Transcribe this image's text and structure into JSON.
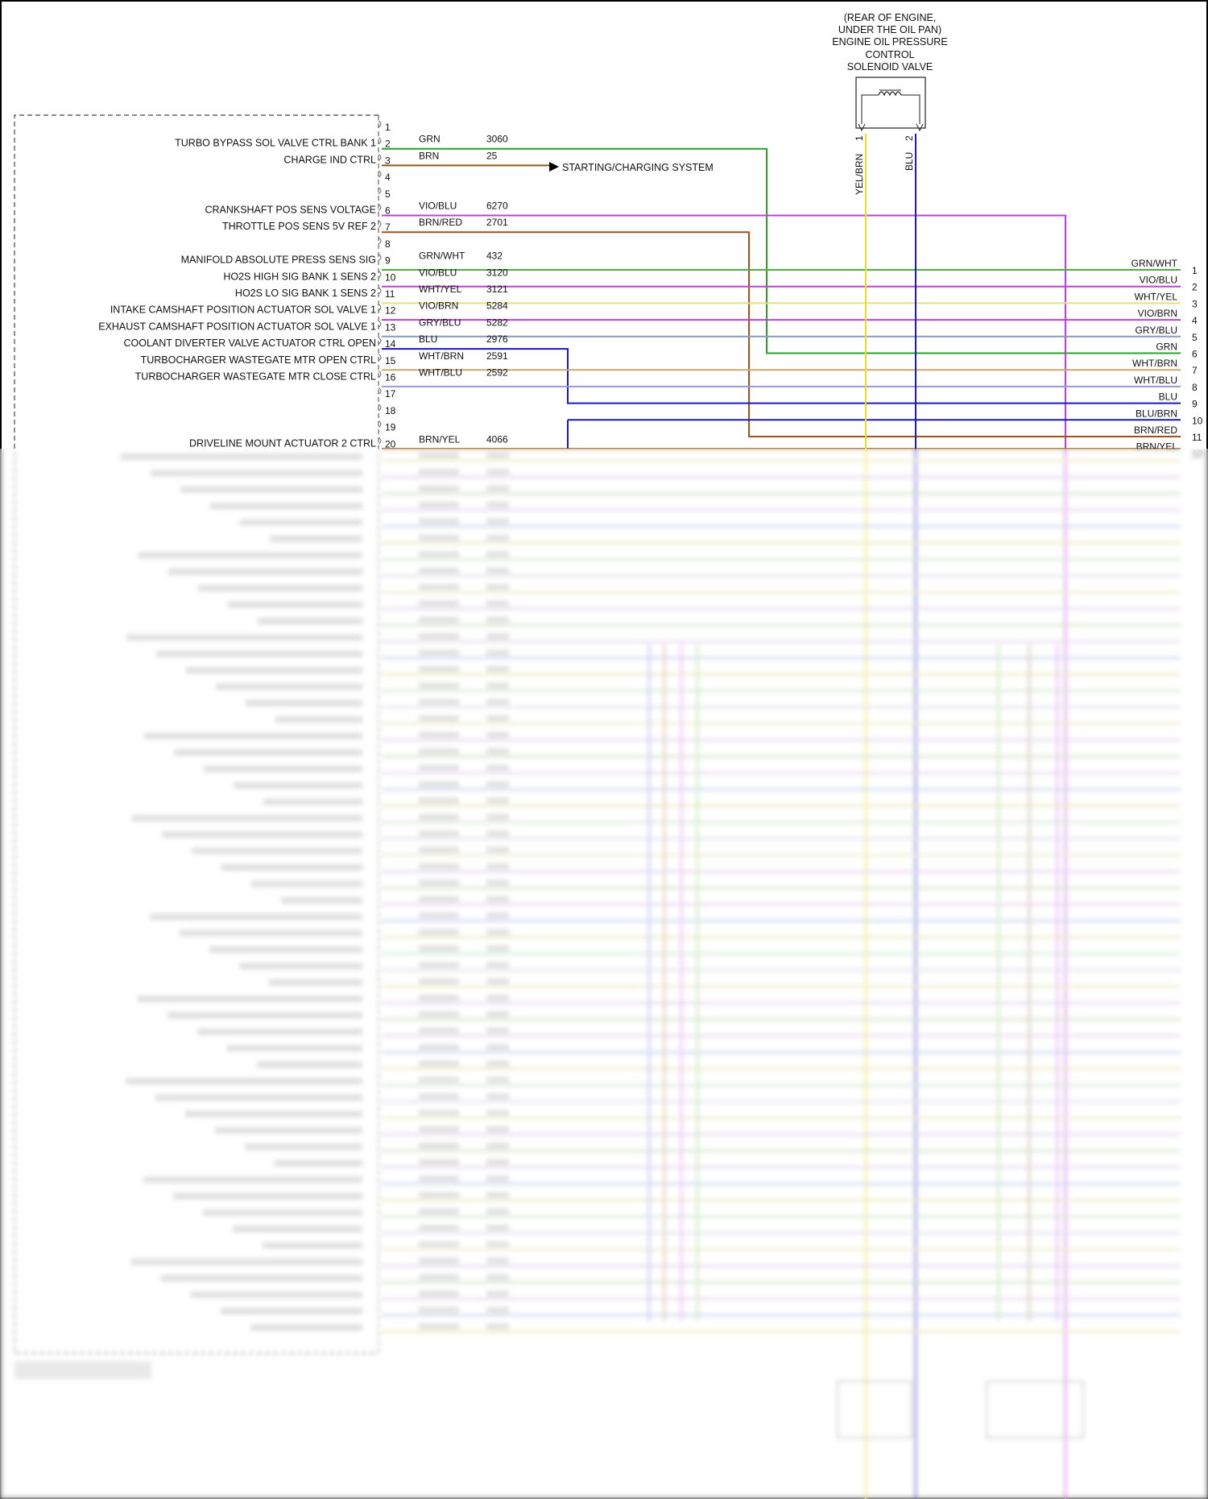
{
  "solenoid": {
    "location_lines": [
      "(REAR OF ENGINE,",
      "UNDER THE OIL PAN)"
    ],
    "name_lines": [
      "ENGINE OIL PRESSURE",
      "CONTROL",
      "SOLENOID VALVE"
    ],
    "pin1": "1",
    "pin2": "2",
    "wire1": "YEL/BRN",
    "wire2": "BLU"
  },
  "destination": "STARTING/CHARGING SYSTEM",
  "pins": [
    {
      "pin": "1",
      "label": "",
      "color": "",
      "circuit": ""
    },
    {
      "pin": "2",
      "label": "TURBO BYPASS SOL VALVE CTRL BANK 1",
      "color": "GRN",
      "circuit": "3060"
    },
    {
      "pin": "3",
      "label": "CHARGE IND CTRL",
      "color": "BRN",
      "circuit": "25"
    },
    {
      "pin": "4",
      "label": "",
      "color": "",
      "circuit": ""
    },
    {
      "pin": "5",
      "label": "",
      "color": "",
      "circuit": ""
    },
    {
      "pin": "6",
      "label": "CRANKSHAFT POS SENS VOLTAGE",
      "color": "VIO/BLU",
      "circuit": "6270"
    },
    {
      "pin": "7",
      "label": "THROTTLE POS SENS 5V REF 2",
      "color": "BRN/RED",
      "circuit": "2701"
    },
    {
      "pin": "8",
      "label": "",
      "color": "",
      "circuit": ""
    },
    {
      "pin": "9",
      "label": "MANIFOLD ABSOLUTE PRESS SENS SIG",
      "color": "GRN/WHT",
      "circuit": "432"
    },
    {
      "pin": "10",
      "label": "HO2S HIGH SIG BANK 1 SENS 2",
      "color": "VIO/BLU",
      "circuit": "3120"
    },
    {
      "pin": "11",
      "label": "HO2S LO SIG BANK 1 SENS 2",
      "color": "WHT/YEL",
      "circuit": "3121"
    },
    {
      "pin": "12",
      "label": "INTAKE CAMSHAFT POSITION ACTUATOR SOL VALVE 1",
      "color": "VIO/BRN",
      "circuit": "5284"
    },
    {
      "pin": "13",
      "label": "EXHAUST CAMSHAFT POSITION ACTUATOR SOL VALVE 1",
      "color": "GRY/BLU",
      "circuit": "5282"
    },
    {
      "pin": "14",
      "label": "COOLANT DIVERTER VALVE ACTUATOR CTRL OPEN",
      "color": "BLU",
      "circuit": "2976"
    },
    {
      "pin": "15",
      "label": "TURBOCHARGER WASTEGATE MTR OPEN CTRL",
      "color": "WHT/BRN",
      "circuit": "2591"
    },
    {
      "pin": "16",
      "label": "TURBOCHARGER WASTEGATE MTR CLOSE CTRL",
      "color": "WHT/BLU",
      "circuit": "2592"
    },
    {
      "pin": "17",
      "label": "",
      "color": "",
      "circuit": ""
    },
    {
      "pin": "18",
      "label": "",
      "color": "",
      "circuit": ""
    },
    {
      "pin": "19",
      "label": "",
      "color": "",
      "circuit": ""
    },
    {
      "pin": "20",
      "label": "DRIVELINE MOUNT ACTUATOR 2 CTRL",
      "color": "BRN/YEL",
      "circuit": "4066"
    }
  ],
  "right_connector": [
    {
      "pin": "1",
      "color": "GRN/WHT"
    },
    {
      "pin": "2",
      "color": "VIO/BLU"
    },
    {
      "pin": "3",
      "color": "WHT/YEL"
    },
    {
      "pin": "4",
      "color": "VIO/BRN"
    },
    {
      "pin": "5",
      "color": "GRY/BLU"
    },
    {
      "pin": "6",
      "color": "GRN"
    },
    {
      "pin": "7",
      "color": "WHT/BRN"
    },
    {
      "pin": "8",
      "color": "WHT/BLU"
    },
    {
      "pin": "9",
      "color": "BLU"
    },
    {
      "pin": "10",
      "color": "BLU/BRN"
    },
    {
      "pin": "11",
      "color": "BRN/RED"
    },
    {
      "pin": "12",
      "color": "BRN/YEL"
    }
  ],
  "wire_colors": {
    "GRN": "#2aa02a",
    "BRN": "#8b5a14",
    "VIO": "#c23cdc",
    "GRNWHT": "#4caf3a",
    "WHTYEL": "#e6e07a",
    "GRYBLU": "#8a9ab8",
    "BLU": "#1a1ab4",
    "WHTBRN": "#c8a878",
    "WHTBLU": "#9898d8",
    "BRNRED": "#a0521a",
    "YELBRN": "#e6e020"
  }
}
